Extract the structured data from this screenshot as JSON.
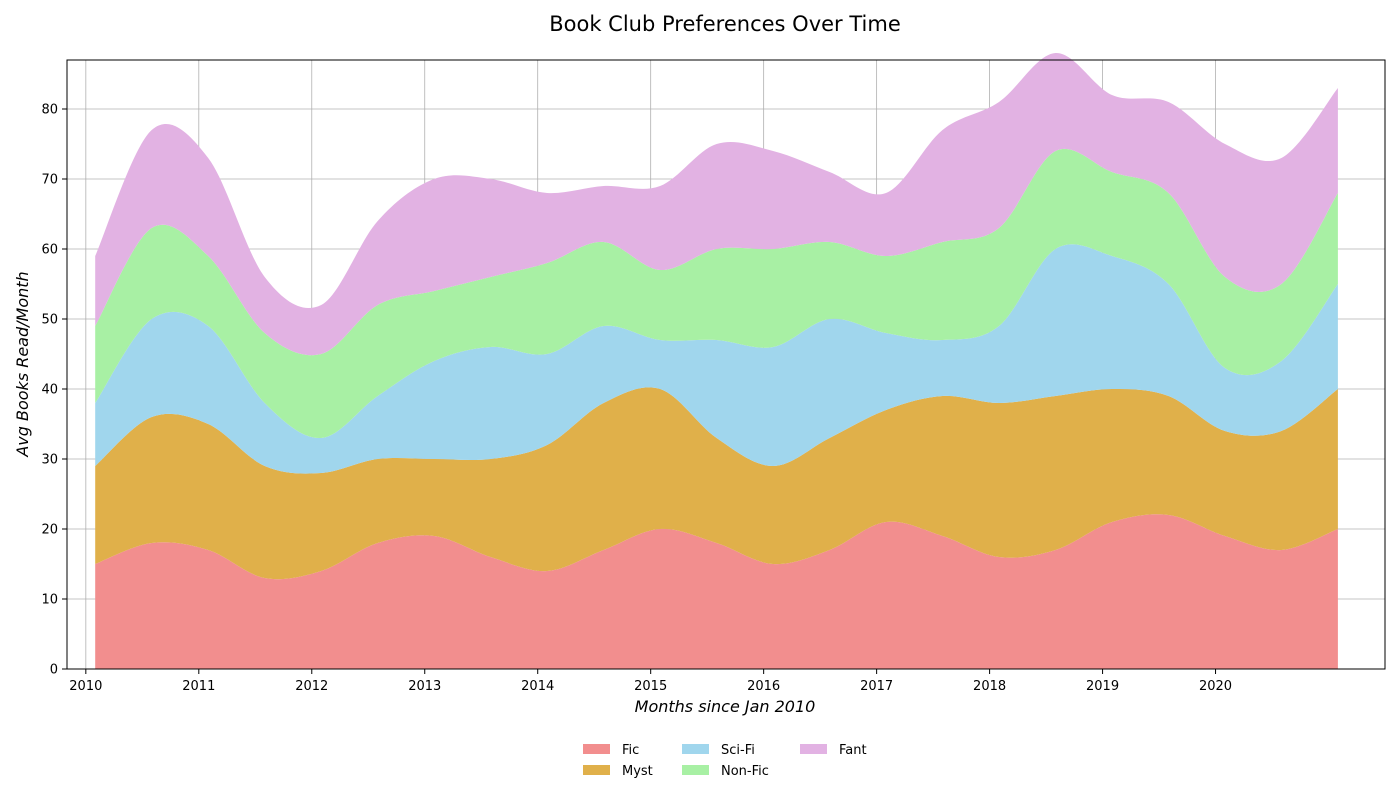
{
  "chart_data": {
    "type": "area",
    "stacked": true,
    "title": "Book Club Preferences Over Time",
    "xlabel": "Months since Jan 2010",
    "ylabel": "Avg Books Read/Month",
    "xlim": [
      "2009-11",
      "2021-07"
    ],
    "ylim": [
      0,
      87
    ],
    "x_ticks": [
      "2010",
      "2011",
      "2012",
      "2013",
      "2014",
      "2015",
      "2016",
      "2017",
      "2018",
      "2019",
      "2020"
    ],
    "y_ticks": [
      0,
      10,
      20,
      30,
      40,
      50,
      60,
      70,
      80
    ],
    "grid": true,
    "legend_position": "bottom-center",
    "x": [
      "2010-02",
      "2010-08",
      "2011-02",
      "2011-08",
      "2012-02",
      "2012-08",
      "2013-02",
      "2013-08",
      "2014-02",
      "2014-08",
      "2015-02",
      "2015-08",
      "2016-02",
      "2016-08",
      "2017-02",
      "2017-08",
      "2018-02",
      "2018-08",
      "2019-02",
      "2019-08",
      "2020-02",
      "2020-08",
      "2021-02"
    ],
    "series": [
      {
        "name": "Fic",
        "color": "#f28e8e",
        "values": [
          15,
          18,
          17,
          13,
          14,
          18,
          19,
          16,
          14,
          17,
          20,
          18,
          15,
          17,
          21,
          19,
          16,
          17,
          21,
          22,
          19,
          17,
          20
        ]
      },
      {
        "name": "Myst",
        "color": "#e0b04a",
        "values": [
          14,
          18,
          18,
          16,
          14,
          12,
          11,
          14,
          18,
          21,
          20,
          15,
          14,
          16,
          16,
          20,
          22,
          22,
          19,
          17,
          15,
          17,
          20
        ]
      },
      {
        "name": "Sci-Fi",
        "color": "#a0d6ed",
        "values": [
          9,
          14,
          14,
          9,
          5,
          9,
          14,
          16,
          13,
          11,
          7,
          14,
          17,
          17,
          11,
          8,
          11,
          21,
          19,
          16,
          9,
          10,
          15
        ]
      },
      {
        "name": "Non-Fic",
        "color": "#a8f0a4",
        "values": [
          11,
          13,
          10,
          10,
          12,
          13,
          10,
          10,
          13,
          12,
          10,
          13,
          14,
          11,
          11,
          14,
          14,
          14,
          12,
          13,
          13,
          11,
          13
        ]
      },
      {
        "name": "Fant",
        "color": "#e2b2e3",
        "values": [
          10,
          14,
          14,
          8,
          7,
          12,
          16,
          14,
          10,
          8,
          12,
          15,
          14,
          10,
          9,
          16,
          18,
          14,
          11,
          13,
          19,
          18,
          15
        ]
      }
    ]
  }
}
